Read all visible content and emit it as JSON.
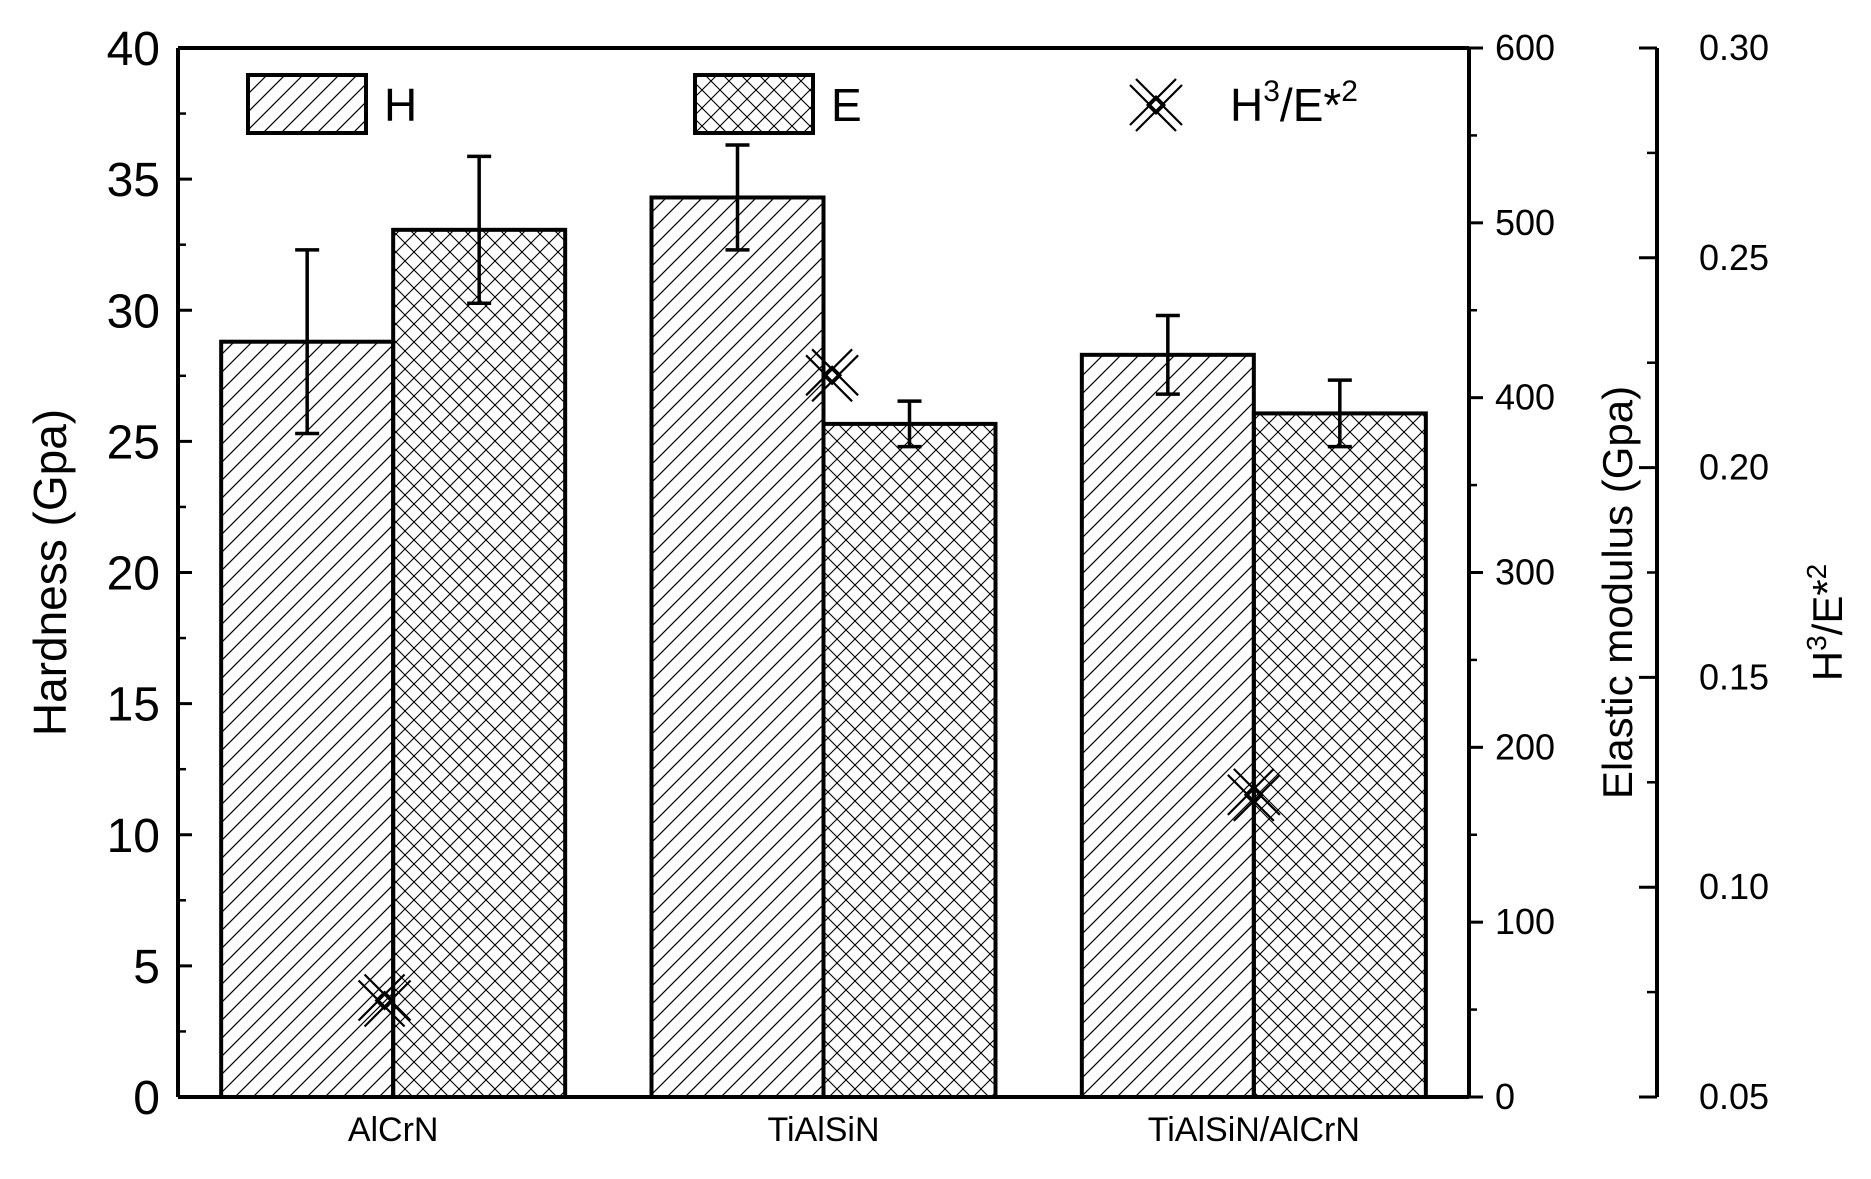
{
  "chart_data": {
    "type": "bar",
    "categories": [
      "AlCrN",
      "TiAlSiN",
      "TiAlSiN/AlCrN"
    ],
    "series": [
      {
        "name": "H",
        "axis": "left",
        "values": [
          28.8,
          34.3,
          28.3
        ],
        "errors": [
          3.5,
          2.0,
          1.5
        ]
      },
      {
        "name": "E",
        "axis": "right",
        "values": [
          496,
          385,
          391
        ],
        "errors": [
          42,
          13,
          19
        ]
      },
      {
        "name": "H3/E*2",
        "axis": "right2",
        "type": "scatter",
        "values": [
          0.073,
          0.222,
          0.122
        ]
      }
    ],
    "legend": {
      "placement": "top",
      "entries": [
        {
          "label": "H",
          "sup": ""
        },
        {
          "label": "E",
          "sup": ""
        },
        {
          "label": "H",
          "sup": "3",
          "rest": "/E*",
          "sup2": "2"
        }
      ]
    },
    "axes": {
      "left": {
        "label": "Hardness (Gpa)",
        "ylim": [
          0,
          40
        ],
        "ticks": [
          "0",
          "5",
          "10",
          "15",
          "20",
          "25",
          "30",
          "35",
          "40"
        ]
      },
      "right": {
        "label": "Elastic modulus (Gpa)",
        "ylim": [
          0,
          600
        ],
        "ticks": [
          "0",
          "100",
          "200",
          "300",
          "400",
          "500",
          "600"
        ]
      },
      "right2": {
        "label_main": "H",
        "label_sup": "3",
        "label_rest": "/E*",
        "label_sup2": "2",
        "ylim": [
          0.05,
          0.3
        ],
        "ticks": [
          "0.05",
          "0.10",
          "0.15",
          "0.20",
          "0.25",
          "0.30"
        ]
      }
    },
    "grid": false
  }
}
